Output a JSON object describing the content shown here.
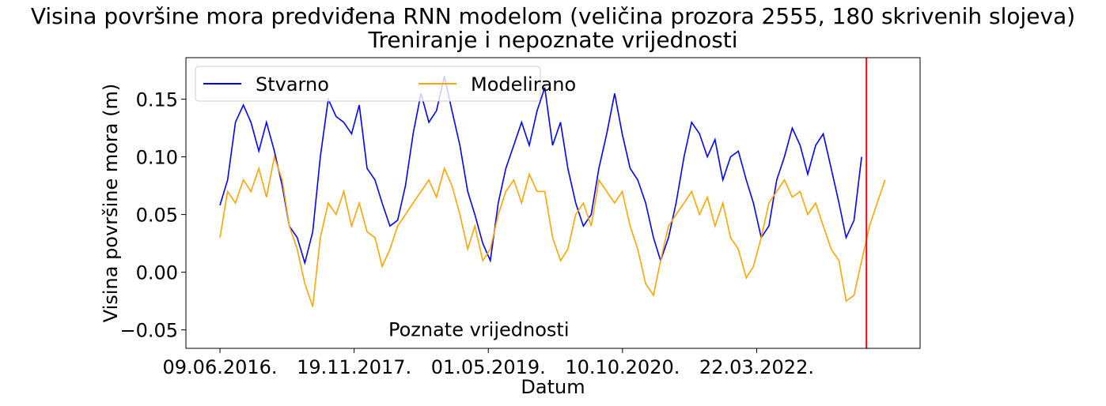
{
  "chart_data": {
    "type": "line",
    "title": "Visina površine mora predviđena RNN modelom (veličina prozora 2555, 180 skrivenih slojeva)",
    "subtitle": "Treniranje i nepoznate vrijednosti",
    "x_label": "Datum",
    "y_label": "Visina površine mora (m)",
    "annotation": "Poznate vrijednosti",
    "annotation_at": [
      "2019-05-01",
      -0.05
    ],
    "vline": "2023-05-28",
    "vline_color": "red",
    "legend": "upper left",
    "xlim": [
      "2016-01-27",
      "2023-12-25"
    ],
    "xticks": [
      {
        "value": "2016-06-09",
        "label": "09.06.2016."
      },
      {
        "value": "2017-11-19",
        "label": "19.11.2017."
      },
      {
        "value": "2019-05-01",
        "label": "01.05.2019."
      },
      {
        "value": "2020-10-10",
        "label": "10.10.2020."
      },
      {
        "value": "2022-03-22",
        "label": "22.03.2022."
      }
    ],
    "ylim": [
      -0.066,
      0.186
    ],
    "yticks": [
      {
        "value": -0.05,
        "label": "−0.05"
      },
      {
        "value": 0,
        "label": "0.00"
      },
      0.05,
      {
        "value": 0.1,
        "label": "0.10"
      },
      0.15
    ],
    "x": [
      "2016-06-09",
      "2016-07-09",
      "2016-08-09",
      "2016-09-09",
      "2016-10-09",
      "2016-11-09",
      "2016-12-09",
      "2017-01-09",
      "2017-02-09",
      "2017-03-09",
      "2017-04-09",
      "2017-05-09",
      "2017-06-09",
      "2017-07-09",
      "2017-08-09",
      "2017-09-09",
      "2017-10-09",
      "2017-11-09",
      "2017-12-09",
      "2018-01-09",
      "2018-02-09",
      "2018-03-09",
      "2018-04-09",
      "2018-05-09",
      "2018-06-09",
      "2018-07-09",
      "2018-08-09",
      "2018-09-09",
      "2018-10-09",
      "2018-11-09",
      "2018-12-09",
      "2019-01-09",
      "2019-02-09",
      "2019-03-09",
      "2019-04-09",
      "2019-05-09",
      "2019-06-09",
      "2019-07-09",
      "2019-08-09",
      "2019-09-09",
      "2019-10-09",
      "2019-11-09",
      "2019-12-09",
      "2020-01-09",
      "2020-02-09",
      "2020-03-09",
      "2020-04-09",
      "2020-05-09",
      "2020-06-09",
      "2020-07-09",
      "2020-08-09",
      "2020-09-09",
      "2020-10-09",
      "2020-11-09",
      "2020-12-09",
      "2021-01-09",
      "2021-02-09",
      "2021-03-09",
      "2021-04-09",
      "2021-05-09",
      "2021-06-09",
      "2021-07-09",
      "2021-08-09",
      "2021-09-09",
      "2021-10-09",
      "2021-11-09",
      "2021-12-09",
      "2022-01-09",
      "2022-02-09",
      "2022-03-09",
      "2022-04-09",
      "2022-05-09",
      "2022-06-09",
      "2022-07-09",
      "2022-08-09",
      "2022-09-09",
      "2022-10-09",
      "2022-11-09",
      "2022-12-09",
      "2023-01-09",
      "2023-02-09",
      "2023-03-09",
      "2023-04-09",
      "2023-05-09",
      "2023-06-09",
      "2023-07-09",
      "2023-08-09"
    ],
    "series": [
      {
        "name": "Stvarno",
        "color": "blue",
        "values": [
          0.058,
          0.08,
          0.13,
          0.145,
          0.13,
          0.105,
          0.13,
          0.105,
          0.075,
          0.04,
          0.03,
          0.008,
          0.035,
          0.1,
          0.15,
          0.135,
          0.13,
          0.12,
          0.145,
          0.09,
          0.08,
          0.06,
          0.04,
          0.045,
          0.075,
          0.12,
          0.155,
          0.13,
          0.14,
          0.17,
          0.14,
          0.11,
          0.07,
          0.05,
          0.025,
          0.01,
          0.06,
          0.09,
          0.11,
          0.13,
          0.11,
          0.14,
          0.16,
          0.11,
          0.13,
          0.09,
          0.06,
          0.04,
          0.05,
          0.09,
          0.12,
          0.155,
          0.12,
          0.09,
          0.08,
          0.06,
          0.03,
          0.01,
          0.03,
          0.06,
          0.1,
          0.13,
          0.12,
          0.1,
          0.115,
          0.08,
          0.1,
          0.105,
          0.08,
          0.06,
          0.03,
          0.04,
          0.08,
          0.1,
          0.125,
          0.11,
          0.085,
          0.11,
          0.12,
          0.09,
          0.06,
          0.03,
          0.045,
          0.1,
          null,
          null,
          null
        ]
      },
      {
        "name": "Modelirano",
        "color": "orange",
        "values": [
          0.03,
          0.07,
          0.06,
          0.08,
          0.07,
          0.09,
          0.065,
          0.1,
          0.08,
          0.04,
          0.02,
          -0.01,
          -0.03,
          0.03,
          0.06,
          0.05,
          0.07,
          0.04,
          0.06,
          0.035,
          0.03,
          0.005,
          0.02,
          0.04,
          0.05,
          0.06,
          0.07,
          0.08,
          0.065,
          0.09,
          0.075,
          0.05,
          0.02,
          0.04,
          0.01,
          0.02,
          0.05,
          0.07,
          0.08,
          0.06,
          0.085,
          0.07,
          0.07,
          0.03,
          0.01,
          0.02,
          0.05,
          0.06,
          0.04,
          0.08,
          0.07,
          0.06,
          0.07,
          0.04,
          0.02,
          -0.01,
          -0.02,
          0.01,
          0.04,
          0.05,
          0.06,
          0.07,
          0.05,
          0.065,
          0.04,
          0.06,
          0.03,
          0.02,
          -0.005,
          0.005,
          0.03,
          0.06,
          0.07,
          0.08,
          0.065,
          0.07,
          0.05,
          0.06,
          0.04,
          0.02,
          0.01,
          -0.025,
          -0.02,
          0.01,
          0.04,
          0.06,
          0.08
        ]
      }
    ]
  }
}
